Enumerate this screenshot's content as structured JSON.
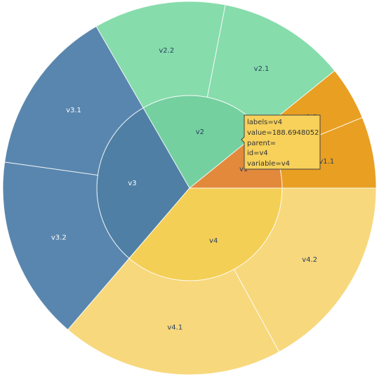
{
  "chart_data": {
    "type": "sunburst",
    "nodes": [
      {
        "id": "v1",
        "label": "v1",
        "parent": "",
        "value": 56.3,
        "color": "#e2893c"
      },
      {
        "id": "v1.1",
        "label": "v1.1",
        "parent": "v1",
        "value": 32.1,
        "color": "#e89f22"
      },
      {
        "id": "v1.2",
        "label": "v1.2",
        "parent": "v1",
        "value": 24.2,
        "color": "#e89f22"
      },
      {
        "id": "v2",
        "label": "v2",
        "parent": "",
        "value": 117.0,
        "color": "#75d0a0"
      },
      {
        "id": "v2.1",
        "label": "v2.1",
        "parent": "v2",
        "value": 57.7,
        "color": "#86dcab"
      },
      {
        "id": "v2.2",
        "label": "v2.2",
        "parent": "v2",
        "value": 59.3,
        "color": "#86dcab"
      },
      {
        "id": "v3",
        "label": "v3",
        "parent": "",
        "value": 157.9,
        "color": "#4f7fa4"
      },
      {
        "id": "v3.1",
        "label": "v3.1",
        "parent": "v3",
        "value": 75.1,
        "color": "#5986ae"
      },
      {
        "id": "v3.2",
        "label": "v3.2",
        "parent": "v3",
        "value": 82.8,
        "color": "#5986ae"
      },
      {
        "id": "v4",
        "label": "v4",
        "parent": "",
        "value": 188.6948052,
        "color": "#f4cf55"
      },
      {
        "id": "v4.1",
        "label": "v4.1",
        "parent": "v4",
        "value": 100.2,
        "color": "#f7d87d"
      },
      {
        "id": "v4.2",
        "label": "v4.2",
        "parent": "v4",
        "value": 88.5,
        "color": "#f7d87d"
      }
    ],
    "hover": {
      "node": "v4",
      "lines": [
        "labels=v4",
        "value=188.6948052",
        "parent=",
        "id=v4",
        "variable=v4"
      ]
    }
  }
}
